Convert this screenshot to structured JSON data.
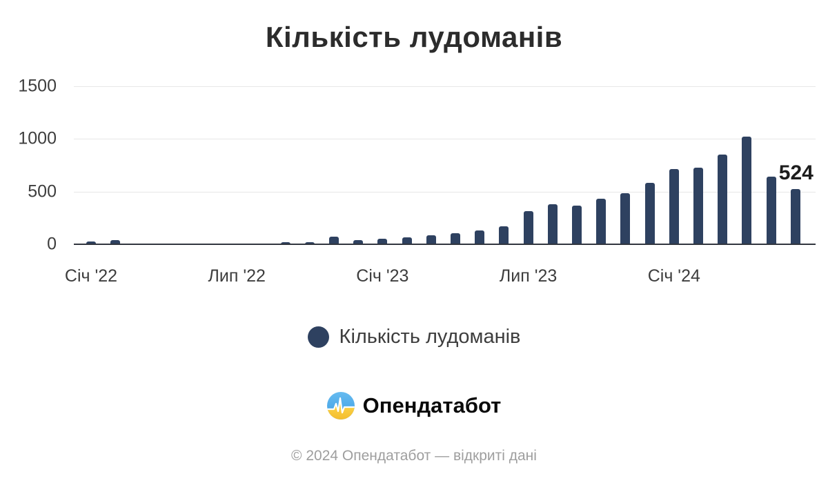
{
  "page": {
    "title": "Кількість лудоманів"
  },
  "legend": {
    "label": "Кількість лудоманів"
  },
  "branding": {
    "name": "Опендатабот",
    "icon": "opendatabot-pulse-icon"
  },
  "footer": {
    "text": "© 2024 Опендатабот — відкриті дані"
  },
  "colors": {
    "bar": "#2e4160",
    "grid": "#e7e7e7",
    "baseline": "#31353e",
    "axis_text": "#3d3d3d",
    "title_text": "#2c2c2c",
    "footer_text": "#9e9e9e",
    "annotation_text": "#1d1d1d",
    "logo_blue": "#4aa7e8",
    "logo_yellow": "#fbca3a"
  },
  "chart_data": {
    "type": "bar",
    "title": "Кількість лудоманів",
    "xlabel": "",
    "ylabel": "",
    "ylim": [
      0,
      1500
    ],
    "yticks": [
      0,
      500,
      1000,
      1500
    ],
    "grid": true,
    "legend_position": "bottom",
    "series_name": "Кількість лудоманів",
    "categories": [
      "2022-01",
      "2022-02",
      "2022-03",
      "2022-04",
      "2022-05",
      "2022-06",
      "2022-07",
      "2022-08",
      "2022-09",
      "2022-10",
      "2022-11",
      "2022-12",
      "2023-01",
      "2023-02",
      "2023-03",
      "2023-04",
      "2023-05",
      "2023-06",
      "2023-07",
      "2023-08",
      "2023-09",
      "2023-10",
      "2023-11",
      "2023-12",
      "2024-01",
      "2024-02",
      "2024-03",
      "2024-04",
      "2024-05",
      "2024-06"
    ],
    "values": [
      27,
      38,
      0,
      0,
      0,
      0,
      0,
      0,
      17,
      19,
      75,
      39,
      54,
      68,
      84,
      102,
      130,
      168,
      315,
      380,
      364,
      433,
      483,
      585,
      715,
      730,
      850,
      1020,
      645,
      524
    ],
    "x_tick_labels": [
      {
        "index": 0,
        "label": "Січ '22"
      },
      {
        "index": 6,
        "label": "Лип '22"
      },
      {
        "index": 12,
        "label": "Січ '23"
      },
      {
        "index": 18,
        "label": "Лип '23"
      },
      {
        "index": 24,
        "label": "Січ '24"
      }
    ],
    "annotation": {
      "index": 29,
      "text": "524"
    }
  }
}
